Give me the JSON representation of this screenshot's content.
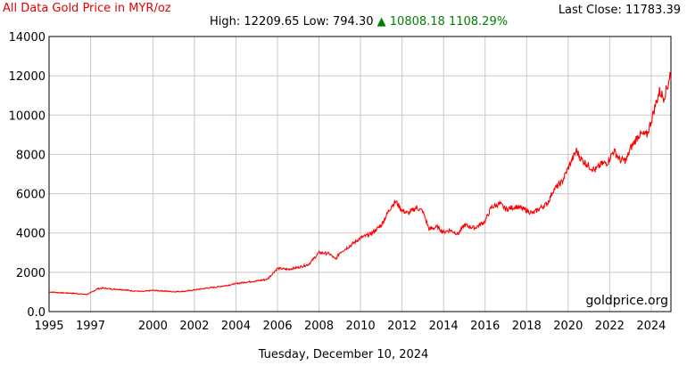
{
  "header": {
    "title": "All Data Gold Price in MYR/oz",
    "high_label": "High:",
    "high": "12209.65",
    "low_label": "Low:",
    "low": "794.30",
    "change_arrow": "▲",
    "change_value": "10808.18",
    "change_pct": "1108.29%",
    "last_close_label": "Last Close:",
    "last_close": "11783.39",
    "change_color": "#008000",
    "title_color": "#e60000"
  },
  "footer": {
    "date": "Tuesday, December 10, 2024"
  },
  "watermark": "goldprice.org",
  "chart_data": {
    "type": "line",
    "title": "All Data Gold Price in MYR/oz",
    "xlabel": "",
    "ylabel": "",
    "xlim": [
      1995,
      2024.95
    ],
    "ylim": [
      0,
      14000
    ],
    "grid": true,
    "line_color": "#ff0000",
    "x_ticks": [
      1995,
      1997,
      2000,
      2002,
      2004,
      2006,
      2008,
      2010,
      2012,
      2014,
      2016,
      2018,
      2020,
      2022,
      2024
    ],
    "x_tick_labels": [
      "1995",
      "1997",
      "2000",
      "2002",
      "2004",
      "2006",
      "2008",
      "2010",
      "2012",
      "2014",
      "2016",
      "2018",
      "2020",
      "2022",
      "2024"
    ],
    "y_ticks": [
      0,
      2000,
      4000,
      6000,
      8000,
      10000,
      12000,
      14000
    ],
    "y_tick_labels": [
      "0.0",
      "2000",
      "4000",
      "6000",
      "8000",
      "10000",
      "12000",
      "14000"
    ],
    "series": [
      {
        "values": [
          [
            1995.0,
            1000
          ],
          [
            1995.5,
            960
          ],
          [
            1996.0,
            940
          ],
          [
            1996.5,
            900
          ],
          [
            1996.8,
            870
          ],
          [
            1997.0,
            950
          ],
          [
            1997.3,
            1150
          ],
          [
            1997.6,
            1200
          ],
          [
            1998.0,
            1150
          ],
          [
            1998.5,
            1120
          ],
          [
            1999.0,
            1060
          ],
          [
            1999.5,
            1020
          ],
          [
            2000.0,
            1080
          ],
          [
            2000.5,
            1050
          ],
          [
            2001.0,
            1010
          ],
          [
            2001.5,
            1030
          ],
          [
            2002.0,
            1100
          ],
          [
            2002.5,
            1180
          ],
          [
            2003.0,
            1240
          ],
          [
            2003.5,
            1320
          ],
          [
            2004.0,
            1420
          ],
          [
            2004.5,
            1500
          ],
          [
            2005.0,
            1560
          ],
          [
            2005.5,
            1640
          ],
          [
            2006.0,
            2200
          ],
          [
            2006.5,
            2150
          ],
          [
            2007.0,
            2250
          ],
          [
            2007.5,
            2400
          ],
          [
            2008.0,
            3000
          ],
          [
            2008.5,
            2950
          ],
          [
            2008.8,
            2650
          ],
          [
            2009.0,
            3000
          ],
          [
            2009.5,
            3350
          ],
          [
            2010.0,
            3750
          ],
          [
            2010.5,
            3950
          ],
          [
            2011.0,
            4400
          ],
          [
            2011.5,
            5400
          ],
          [
            2011.7,
            5600
          ],
          [
            2012.0,
            5150
          ],
          [
            2012.3,
            5000
          ],
          [
            2012.7,
            5300
          ],
          [
            2013.0,
            5100
          ],
          [
            2013.3,
            4200
          ],
          [
            2013.7,
            4300
          ],
          [
            2014.0,
            4050
          ],
          [
            2014.3,
            4150
          ],
          [
            2014.7,
            3950
          ],
          [
            2015.0,
            4400
          ],
          [
            2015.5,
            4250
          ],
          [
            2016.0,
            4600
          ],
          [
            2016.3,
            5300
          ],
          [
            2016.7,
            5500
          ],
          [
            2017.0,
            5200
          ],
          [
            2017.5,
            5350
          ],
          [
            2018.0,
            5150
          ],
          [
            2018.3,
            5000
          ],
          [
            2018.7,
            5300
          ],
          [
            2019.0,
            5500
          ],
          [
            2019.3,
            6200
          ],
          [
            2019.7,
            6600
          ],
          [
            2020.0,
            7300
          ],
          [
            2020.4,
            8200
          ],
          [
            2020.6,
            7800
          ],
          [
            2021.0,
            7400
          ],
          [
            2021.3,
            7200
          ],
          [
            2021.6,
            7500
          ],
          [
            2021.9,
            7600
          ],
          [
            2022.2,
            8200
          ],
          [
            2022.5,
            7700
          ],
          [
            2022.8,
            7700
          ],
          [
            2023.0,
            8300
          ],
          [
            2023.4,
            9000
          ],
          [
            2023.8,
            9000
          ],
          [
            2024.0,
            9700
          ],
          [
            2024.2,
            10500
          ],
          [
            2024.4,
            11200
          ],
          [
            2024.6,
            10900
          ],
          [
            2024.8,
            11500
          ],
          [
            2024.9,
            12100
          ],
          [
            2024.95,
            11783
          ]
        ]
      }
    ]
  }
}
